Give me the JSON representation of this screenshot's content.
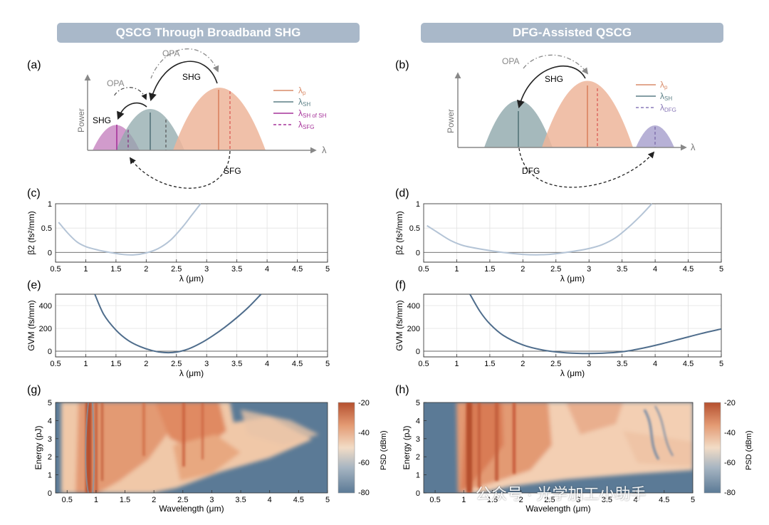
{
  "panels_header": {
    "left_title": "QSCG Through Broadband SHG",
    "right_title": "DFG-Assisted QSCG"
  },
  "panel_labels": [
    "(a)",
    "(b)",
    "(c)",
    "(d)",
    "(e)",
    "(f)",
    "(g)",
    "(h)"
  ],
  "schematic_a": {
    "y_label": "Power",
    "x_label": "λ",
    "arrows": [
      "OPA",
      "OPA",
      "SHG",
      "SHG",
      "SFG"
    ],
    "legend": [
      {
        "symbol": "λ",
        "sub": "p",
        "color": "#d98c6a",
        "style": "solid"
      },
      {
        "symbol": "λ",
        "sub": "SH",
        "color": "#5b7f86",
        "style": "solid"
      },
      {
        "symbol": "λ",
        "sub": "SH of SH",
        "color": "#a6339a",
        "style": "solid"
      },
      {
        "symbol": "λ",
        "sub": "SFG",
        "color": "#a6339a",
        "style": "dashed"
      }
    ]
  },
  "schematic_b": {
    "y_label": "Power",
    "x_label": "λ",
    "arrows": [
      "OPA",
      "SHG",
      "DFG"
    ],
    "legend": [
      {
        "symbol": "λ",
        "sub": "p",
        "color": "#d98c6a",
        "style": "solid"
      },
      {
        "symbol": "λ",
        "sub": "SH",
        "color": "#5b7f86",
        "style": "solid"
      },
      {
        "symbol": "λ",
        "sub": "DFG",
        "color": "#8a7ab8",
        "style": "dashed"
      }
    ]
  },
  "chart_data": [
    {
      "id": "c",
      "type": "line",
      "xlabel": "λ (μm)",
      "ylabel": "β2 (fs²/mm)",
      "xlim": [
        0.5,
        5
      ],
      "ylim": [
        -0.2,
        1
      ],
      "xticks": [
        "0.5",
        "1",
        "1.5",
        "2",
        "2.5",
        "3",
        "3.5",
        "4",
        "4.5",
        "5"
      ],
      "yticks": [
        "0",
        "0.5",
        "1"
      ],
      "series": [
        {
          "name": "β2",
          "color": "#b4c4d6",
          "x": [
            0.55,
            0.7,
            0.85,
            1.0,
            1.2,
            1.4,
            1.6,
            1.8,
            2.0,
            2.2,
            2.4,
            2.6,
            2.75,
            2.9
          ],
          "y": [
            0.62,
            0.4,
            0.22,
            0.12,
            0.05,
            0.0,
            -0.04,
            -0.05,
            -0.01,
            0.08,
            0.25,
            0.52,
            0.76,
            1.0
          ]
        }
      ]
    },
    {
      "id": "d",
      "type": "line",
      "xlabel": "λ (μm)",
      "ylabel": "β2 (fs²/mm)",
      "xlim": [
        0.5,
        5
      ],
      "ylim": [
        -0.2,
        1
      ],
      "xticks": [
        "0.5",
        "1",
        "1.5",
        "2",
        "2.5",
        "3",
        "3.5",
        "4",
        "4.5",
        "5"
      ],
      "yticks": [
        "0",
        "0.5",
        "1"
      ],
      "series": [
        {
          "name": "β2",
          "color": "#b4c4d6",
          "x": [
            0.55,
            0.7,
            0.9,
            1.1,
            1.4,
            1.7,
            2.0,
            2.2,
            2.4,
            2.6,
            2.8,
            3.0,
            3.2,
            3.4,
            3.6,
            3.8,
            3.95
          ],
          "y": [
            0.55,
            0.42,
            0.25,
            0.14,
            0.06,
            0.0,
            -0.04,
            -0.05,
            -0.04,
            -0.01,
            0.03,
            0.08,
            0.16,
            0.3,
            0.52,
            0.78,
            1.0
          ]
        }
      ]
    },
    {
      "id": "e",
      "type": "line",
      "xlabel": "λ (μm)",
      "ylabel": "GVM (fs/mm)",
      "xlim": [
        0.5,
        5
      ],
      "ylim": [
        -50,
        500
      ],
      "xticks": [
        "0.5",
        "1",
        "1.5",
        "2",
        "2.5",
        "3",
        "3.5",
        "4",
        "4.5",
        "5"
      ],
      "yticks": [
        "0",
        "200",
        "400"
      ],
      "series": [
        {
          "name": "GVM",
          "color": "#4f6d8c",
          "x": [
            1.15,
            1.3,
            1.5,
            1.7,
            1.9,
            2.1,
            2.3,
            2.5,
            2.7,
            2.9,
            3.1,
            3.3,
            3.5,
            3.7,
            3.9
          ],
          "y": [
            500,
            320,
            185,
            95,
            40,
            5,
            -12,
            -8,
            20,
            70,
            135,
            210,
            295,
            390,
            500
          ]
        }
      ]
    },
    {
      "id": "f",
      "type": "line",
      "xlabel": "λ (μm)",
      "ylabel": "GVM (fs/mm)",
      "xlim": [
        0.5,
        5
      ],
      "ylim": [
        -50,
        500
      ],
      "xticks": [
        "0.5",
        "1",
        "1.5",
        "2",
        "2.5",
        "3",
        "3.5",
        "4",
        "4.5",
        "5"
      ],
      "yticks": [
        "0",
        "200",
        "400"
      ],
      "series": [
        {
          "name": "GVM",
          "color": "#4f6d8c",
          "x": [
            1.2,
            1.35,
            1.5,
            1.7,
            2.0,
            2.3,
            2.6,
            2.9,
            3.2,
            3.5,
            3.8,
            4.1,
            4.4,
            4.7,
            5.0
          ],
          "y": [
            500,
            350,
            240,
            140,
            55,
            10,
            -12,
            -20,
            -18,
            -5,
            25,
            65,
            110,
            155,
            195
          ]
        }
      ]
    },
    {
      "id": "g",
      "type": "heatmap",
      "xlabel": "Wavelength (μm)",
      "ylabel": "Energy (pJ)",
      "xlim": [
        0.3,
        5
      ],
      "ylim": [
        0,
        5
      ],
      "xticks": [
        "0.5",
        "1",
        "1.5",
        "2",
        "2.5",
        "3",
        "3.5",
        "4",
        "4.5",
        "5"
      ],
      "yticks": [
        "0",
        "1",
        "2",
        "3",
        "4",
        "5"
      ],
      "colorbar": {
        "label": "PSD (dBm)",
        "range": [
          -80,
          -20
        ],
        "ticks": [
          "-20",
          "-40",
          "-60",
          "-80"
        ]
      }
    },
    {
      "id": "h",
      "type": "heatmap",
      "xlabel": "Wavelength (μm)",
      "ylabel": "Energy (pJ)",
      "xlim": [
        0.3,
        5
      ],
      "ylim": [
        0,
        5
      ],
      "xticks": [
        "0.5",
        "1",
        "1.5",
        "2",
        "2.5",
        "3",
        "3.5",
        "4",
        "4.5",
        "5"
      ],
      "yticks": [
        "0",
        "1",
        "2",
        "3",
        "4",
        "5"
      ],
      "colorbar": {
        "label": "PSD (dBm)",
        "range": [
          -80,
          -20
        ],
        "ticks": [
          "-20",
          "-40",
          "-60",
          "-80"
        ]
      }
    }
  ],
  "watermark": "公众号 · 光学加工小助手"
}
